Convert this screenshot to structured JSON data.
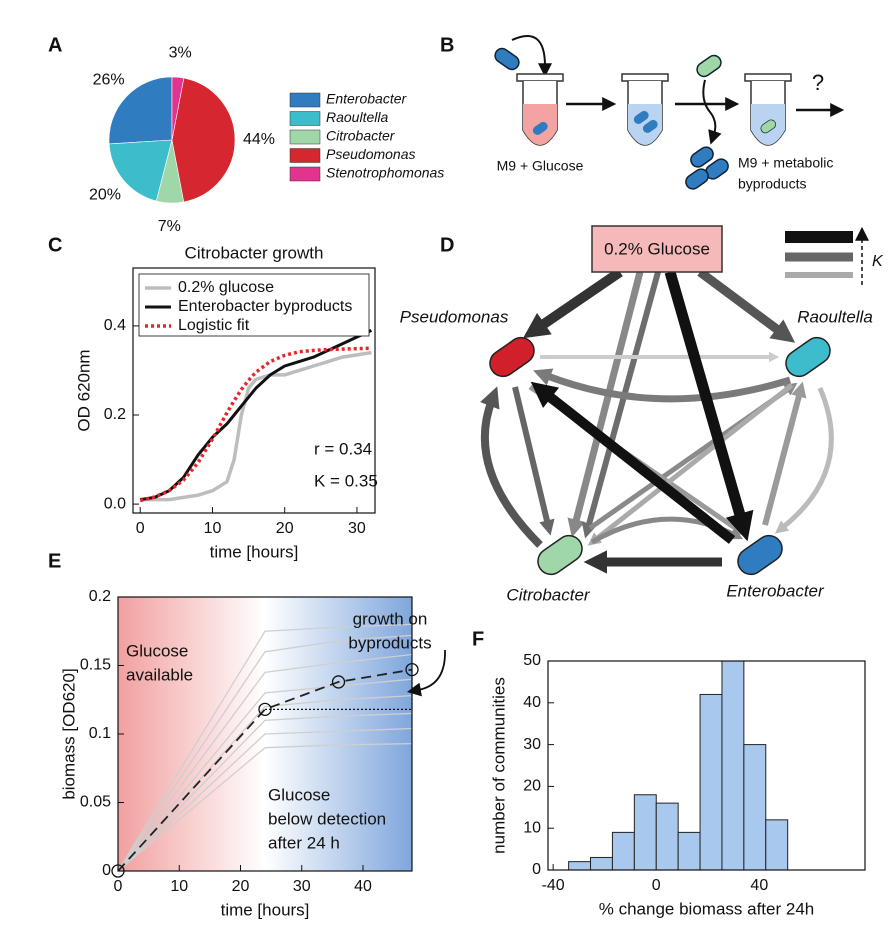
{
  "chart_data": [
    {
      "type": "pie",
      "label": "A",
      "categories": [
        "Enterobacter",
        "Raoultella",
        "Citrobacter",
        "Pseudomonas",
        "Stenotrophomonas"
      ],
      "values": [
        26,
        20,
        7,
        44,
        3
      ],
      "value_labels": [
        "26%",
        "20%",
        "7%",
        "44%",
        "3%"
      ],
      "colors": [
        "#2f7dc0",
        "#3dbccb",
        "#9fd7a9",
        "#d6262f",
        "#e2338f"
      ],
      "legend": "right"
    },
    {
      "type": "line",
      "label": "C",
      "title": "Citrobacter growth",
      "x_label": "time [hours]",
      "y_label": "OD 620nm",
      "x": [
        0,
        2,
        4,
        6,
        8,
        10,
        12,
        13,
        14,
        15,
        16,
        18,
        20,
        22,
        24,
        26,
        28,
        30,
        32
      ],
      "series": [
        {
          "name": "0.2% glucose",
          "color": "#bdbdbd",
          "width": 3.5,
          "style": "solid",
          "values": [
            0.01,
            0.01,
            0.01,
            0.015,
            0.02,
            0.03,
            0.05,
            0.1,
            0.2,
            0.26,
            0.28,
            0.29,
            0.29,
            0.3,
            0.31,
            0.32,
            0.33,
            0.335,
            0.34
          ]
        },
        {
          "name": "Enterobacter byproducts",
          "color": "#111111",
          "width": 3,
          "style": "solid",
          "values": [
            0.01,
            0.015,
            0.03,
            0.06,
            0.11,
            0.15,
            0.18,
            0.2,
            0.22,
            0.24,
            0.26,
            0.29,
            0.31,
            0.32,
            0.33,
            0.345,
            0.36,
            0.375,
            0.39
          ]
        },
        {
          "name": "Logistic fit",
          "color": "#e8262a",
          "width": 3.5,
          "style": "dotted",
          "values": [
            0.008,
            0.016,
            0.03,
            0.054,
            0.093,
            0.146,
            0.205,
            0.232,
            0.257,
            0.278,
            0.296,
            0.32,
            0.334,
            0.342,
            0.345,
            0.347,
            0.348,
            0.349,
            0.35
          ]
        }
      ],
      "xlim": [
        -1,
        32.5
      ],
      "xticks": [
        0,
        10,
        20,
        30
      ],
      "ylim": [
        -0.02,
        0.53
      ],
      "yticks": [
        {
          "value": 0,
          "label": "0.0"
        },
        0.2,
        0.4
      ],
      "legend": "upper left",
      "annotations": [
        [
          "r = 0.34"
        ],
        [
          "K = 0.35"
        ]
      ]
    },
    {
      "type": "line",
      "label": "E",
      "x_label": "time [hours]",
      "y_label": "biomass [OD620]",
      "x": [
        0,
        24,
        36,
        48
      ],
      "series": [
        {
          "color": "#cfcfcf",
          "width": 1.3,
          "style": "solid",
          "values": [
            0,
            0.175,
            0.178,
            0.18
          ]
        },
        {
          "color": "#cfcfcf",
          "width": 1.3,
          "style": "solid",
          "values": [
            0,
            0.16,
            0.168,
            0.172
          ]
        },
        {
          "color": "#cfcfcf",
          "width": 1.3,
          "style": "solid",
          "values": [
            0,
            0.145,
            0.152,
            0.158
          ]
        },
        {
          "color": "#cfcfcf",
          "width": 1.3,
          "style": "solid",
          "values": [
            0,
            0.13,
            0.135,
            0.14
          ]
        },
        {
          "color": "#cfcfcf",
          "width": 1.3,
          "style": "solid",
          "values": [
            0,
            0.12,
            0.125,
            0.128
          ]
        },
        {
          "color": "#cfcfcf",
          "width": 1.3,
          "style": "solid",
          "values": [
            0,
            0.11,
            0.113,
            0.115
          ]
        },
        {
          "color": "#cfcfcf",
          "width": 1.3,
          "style": "solid",
          "values": [
            0,
            0.1,
            0.102,
            0.104
          ]
        },
        {
          "color": "#cfcfcf",
          "width": 1.3,
          "style": "solid",
          "values": [
            0,
            0.09,
            0.092,
            0.093
          ]
        },
        {
          "color": "#222222",
          "width": 1.8,
          "style": "dashed",
          "markers": "circle",
          "values": [
            0,
            0.118,
            0.138,
            0.147
          ]
        }
      ],
      "xlim": [
        0,
        48
      ],
      "xticks": [
        0,
        10,
        20,
        30,
        40
      ],
      "ylim": [
        0,
        0.2
      ],
      "yticks": [
        0,
        0.05,
        0.1,
        0.15,
        0.2
      ],
      "annotations": [
        [
          "Glucose",
          "available"
        ],
        [
          "Glucose",
          "below detection",
          "after 24 h"
        ],
        [
          "growth on",
          "byproducts"
        ]
      ]
    },
    {
      "type": "histogram",
      "label": "F",
      "x_label": "% change biomass after 24h",
      "y_label": "number of communities",
      "bins": [
        -34,
        -25.5,
        -17,
        -8.5,
        0,
        8.5,
        17,
        25.5,
        34,
        42.5,
        51
      ],
      "values": [
        2,
        3,
        9,
        18,
        16,
        9,
        42,
        50,
        30,
        12
      ],
      "color": "#a9c8ee",
      "xlim": [
        -42,
        81
      ],
      "xticks": [
        -40,
        0,
        40
      ],
      "ylim": [
        0,
        50
      ],
      "yticks": [
        0,
        10,
        20,
        30,
        40,
        50
      ]
    }
  ],
  "diagram_b": {
    "label": "B",
    "left_medium": "M9 + Glucose",
    "right_medium": [
      "M9 + metabolic",
      "byproducts"
    ],
    "question": "?"
  },
  "diagram_d": {
    "label": "D",
    "source": "0.2% Glucose",
    "key": "K",
    "nodes": [
      "Pseudomonas",
      "Raoultella",
      "Citrobacter",
      "Enterobacter"
    ]
  }
}
